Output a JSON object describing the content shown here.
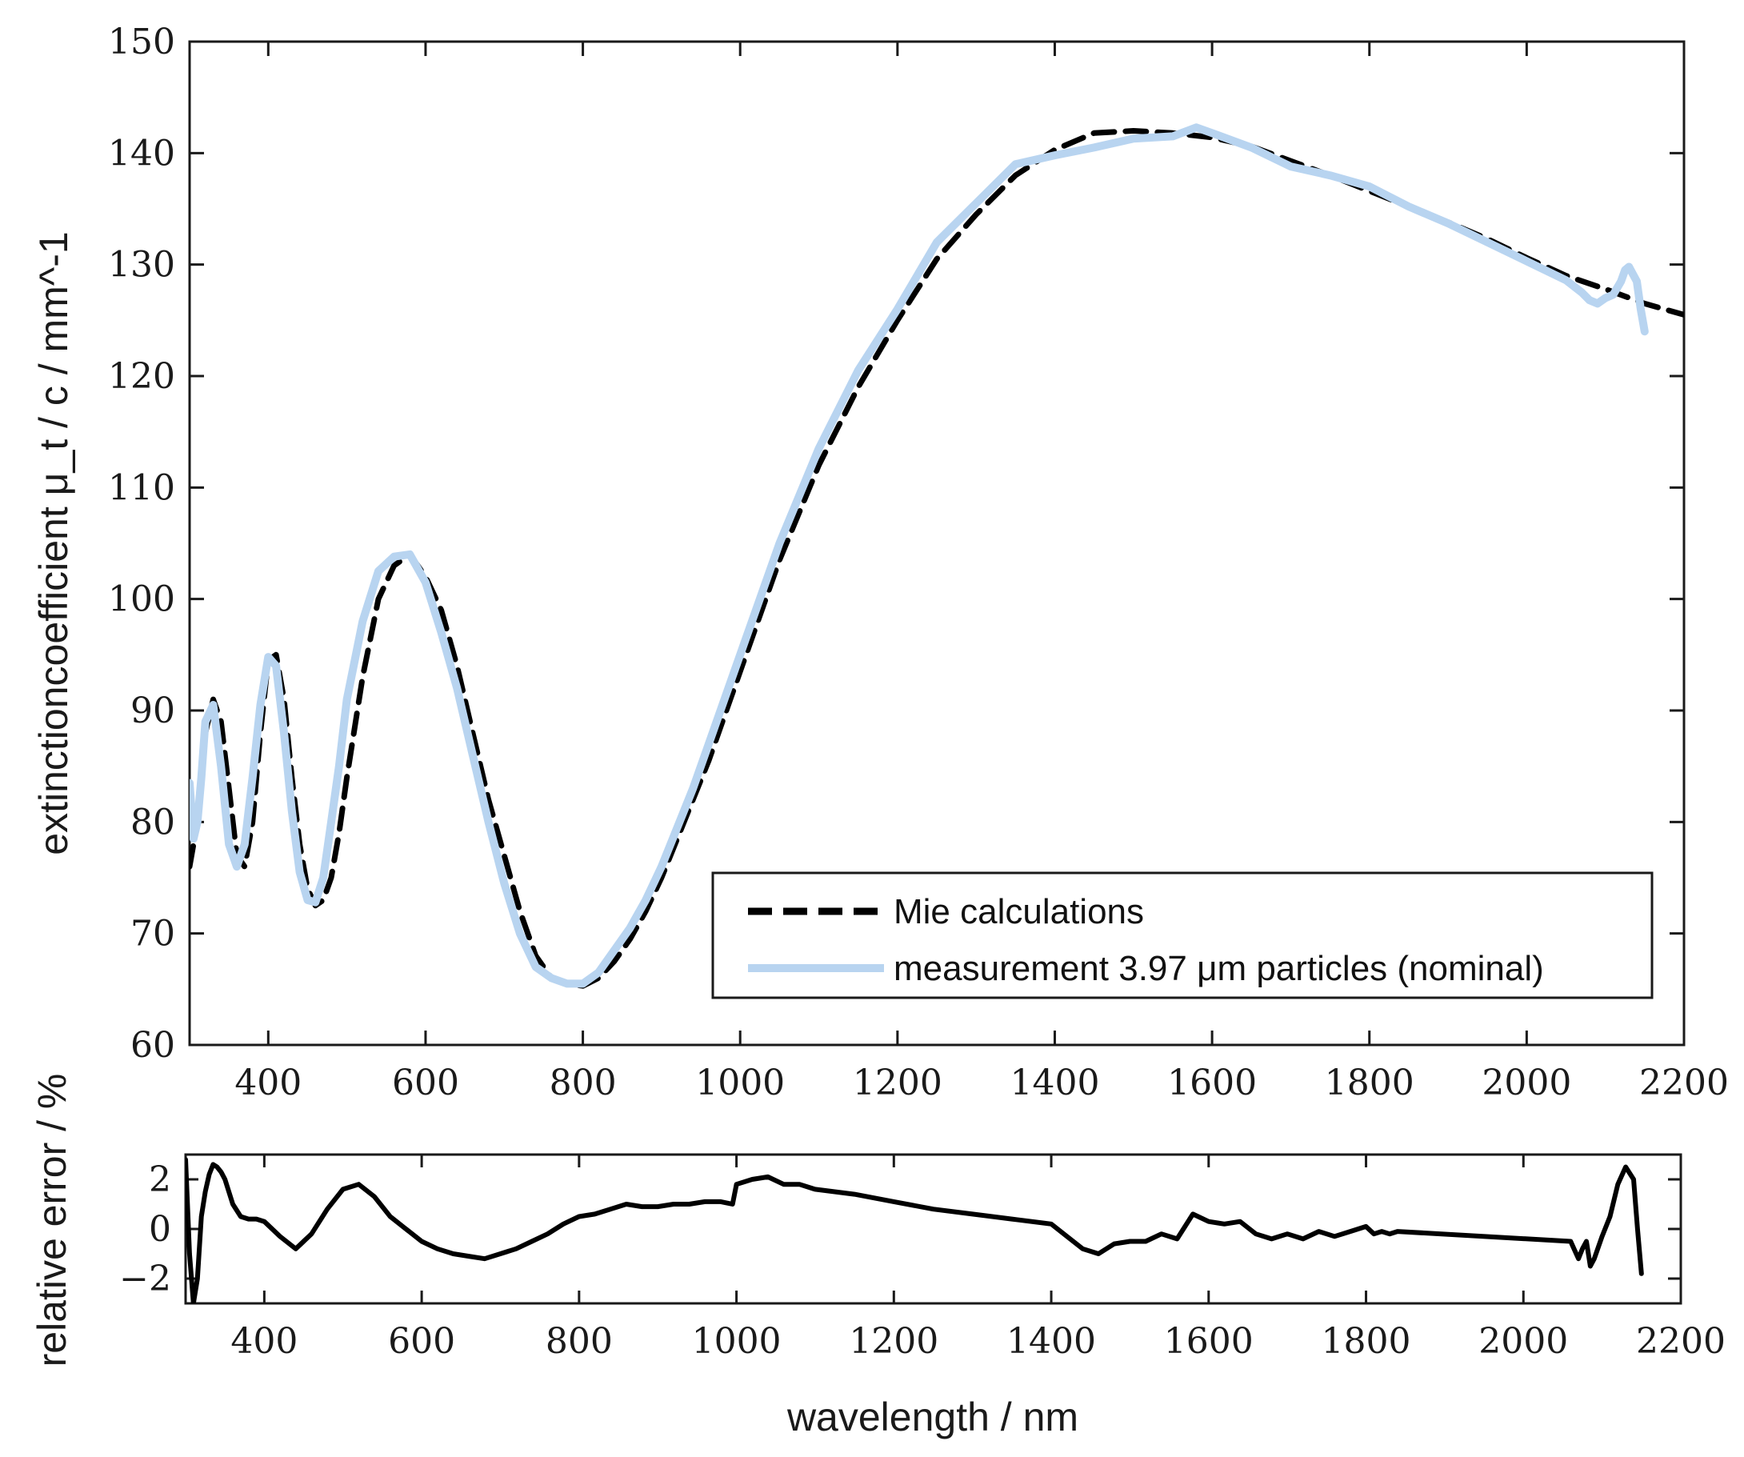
{
  "chart_data": [
    {
      "type": "line",
      "xlabel": "",
      "ylabel": "extinctioncoefficient μ_t / c / mm^-1",
      "xlim": [
        300,
        2200
      ],
      "ylim": [
        60,
        150
      ],
      "xticks": [
        400,
        600,
        800,
        1000,
        1200,
        1400,
        1600,
        1800,
        2000,
        2200
      ],
      "yticks": [
        60,
        70,
        80,
        90,
        100,
        110,
        120,
        130,
        140,
        150
      ],
      "legend": {
        "position": "bottom-right"
      },
      "series": [
        {
          "name": "Mie calculations",
          "style": "dashed",
          "color": "#000000",
          "x": [
            300,
            310,
            320,
            330,
            340,
            350,
            360,
            370,
            380,
            390,
            400,
            410,
            420,
            430,
            440,
            450,
            460,
            470,
            480,
            490,
            500,
            520,
            540,
            560,
            580,
            600,
            620,
            640,
            660,
            680,
            700,
            720,
            740,
            760,
            780,
            800,
            820,
            840,
            860,
            880,
            900,
            920,
            940,
            960,
            980,
            1000,
            1050,
            1100,
            1150,
            1200,
            1250,
            1300,
            1350,
            1400,
            1450,
            1500,
            1550,
            1600,
            1650,
            1700,
            1750,
            1800,
            1850,
            1900,
            1950,
            2000,
            2050,
            2100,
            2150,
            2200
          ],
          "values": [
            76,
            80,
            88,
            91,
            89,
            83,
            77,
            76,
            80,
            88,
            94.5,
            95,
            91,
            84,
            78,
            74,
            72.5,
            73,
            75,
            79,
            84,
            93,
            100,
            103,
            104,
            102,
            99,
            94,
            88,
            82,
            77,
            72,
            68,
            66,
            65.5,
            65.3,
            66,
            67.5,
            69.5,
            72,
            75,
            78.5,
            82,
            85.5,
            89.5,
            93.5,
            103.5,
            112,
            119,
            125,
            130.5,
            134.5,
            138,
            140.3,
            141.8,
            142,
            141.8,
            141.4,
            140.6,
            139.3,
            138,
            136.6,
            135.2,
            133.8,
            132.3,
            130.6,
            129,
            127.8,
            126.5,
            125.5
          ]
        },
        {
          "name": "measurement 3.97 μm particles (nominal)",
          "style": "solid",
          "color": "#b8d4f0",
          "x": [
            300,
            305,
            310,
            315,
            320,
            330,
            340,
            350,
            360,
            370,
            380,
            390,
            400,
            410,
            420,
            430,
            440,
            450,
            460,
            470,
            480,
            490,
            500,
            520,
            540,
            560,
            580,
            600,
            620,
            640,
            660,
            680,
            700,
            720,
            740,
            760,
            780,
            800,
            820,
            840,
            860,
            880,
            900,
            920,
            940,
            960,
            980,
            1000,
            1050,
            1100,
            1150,
            1200,
            1250,
            1300,
            1350,
            1400,
            1450,
            1500,
            1550,
            1580,
            1600,
            1650,
            1700,
            1750,
            1800,
            1850,
            1900,
            1950,
            2000,
            2050,
            2070,
            2080,
            2090,
            2100,
            2110,
            2120,
            2125,
            2130,
            2140,
            2145,
            2150
          ],
          "values": [
            83.5,
            78.5,
            80,
            84,
            89,
            90.5,
            85,
            78,
            76,
            78,
            84,
            90.5,
            94.8,
            94,
            88,
            81,
            75.5,
            73,
            72.8,
            75,
            80,
            85,
            91,
            98,
            102.5,
            103.8,
            104,
            101.5,
            97,
            92,
            86,
            80,
            74.5,
            70,
            67,
            66,
            65.5,
            65.5,
            66.5,
            68.5,
            70.5,
            73,
            76,
            79.5,
            83,
            87,
            91,
            95,
            105,
            113.5,
            120.5,
            126,
            132,
            135.5,
            139,
            139.8,
            140.5,
            141.3,
            141.5,
            142.3,
            141.8,
            140.5,
            138.8,
            138,
            137,
            135.2,
            133.7,
            132,
            130.3,
            128.6,
            127.5,
            126.8,
            126.5,
            127,
            127.3,
            128.5,
            129.5,
            129.8,
            128.5,
            126,
            124
          ]
        }
      ]
    },
    {
      "type": "line",
      "xlabel": "wavelength / nm",
      "ylabel": "relative error / %",
      "xlim": [
        300,
        2200
      ],
      "ylim": [
        -3,
        3
      ],
      "xticks": [
        400,
        600,
        800,
        1000,
        1200,
        1400,
        1600,
        1800,
        2000,
        2200
      ],
      "yticks": [
        -2,
        0,
        2
      ],
      "ytick_labels": [
        "−2",
        "0",
        "2"
      ],
      "series": [
        {
          "name": "relative error",
          "style": "solid",
          "color": "#000000",
          "x": [
            300,
            305,
            310,
            315,
            320,
            325,
            330,
            335,
            340,
            345,
            350,
            360,
            370,
            380,
            390,
            400,
            420,
            440,
            460,
            480,
            500,
            520,
            540,
            560,
            580,
            600,
            620,
            640,
            660,
            680,
            700,
            720,
            740,
            760,
            780,
            800,
            820,
            840,
            860,
            880,
            900,
            920,
            940,
            960,
            980,
            995,
            1000,
            1020,
            1040,
            1060,
            1080,
            1100,
            1150,
            1200,
            1250,
            1300,
            1350,
            1400,
            1420,
            1440,
            1460,
            1480,
            1500,
            1520,
            1540,
            1560,
            1580,
            1600,
            1620,
            1640,
            1660,
            1680,
            1700,
            1720,
            1740,
            1760,
            1780,
            1800,
            1810,
            1820,
            1830,
            1840,
            2060,
            2070,
            2075,
            2080,
            2085,
            2090,
            2100,
            2110,
            2120,
            2130,
            2140,
            2145,
            2150
          ],
          "values": [
            2.8,
            -1,
            -3,
            -2,
            0.5,
            1.5,
            2.2,
            2.6,
            2.5,
            2.3,
            2,
            1,
            0.5,
            0.4,
            0.4,
            0.3,
            -0.3,
            -0.8,
            -0.2,
            0.8,
            1.6,
            1.8,
            1.3,
            0.5,
            0,
            -0.5,
            -0.8,
            -1,
            -1.1,
            -1.2,
            -1,
            -0.8,
            -0.5,
            -0.2,
            0.2,
            0.5,
            0.6,
            0.8,
            1,
            0.9,
            0.9,
            1,
            1,
            1.1,
            1.1,
            1,
            1.8,
            2,
            2.1,
            1.8,
            1.8,
            1.6,
            1.4,
            1.1,
            0.8,
            0.6,
            0.4,
            0.2,
            -0.3,
            -0.8,
            -1,
            -0.6,
            -0.5,
            -0.5,
            -0.2,
            -0.4,
            0.6,
            0.3,
            0.2,
            0.3,
            -0.2,
            -0.4,
            -0.2,
            -0.4,
            -0.1,
            -0.3,
            -0.1,
            0.1,
            -0.2,
            -0.1,
            -0.2,
            -0.1,
            -0.5,
            -1.2,
            -0.8,
            -0.5,
            -1.5,
            -1.2,
            -0.3,
            0.5,
            1.8,
            2.5,
            2,
            0,
            -1.8
          ]
        }
      ]
    }
  ]
}
